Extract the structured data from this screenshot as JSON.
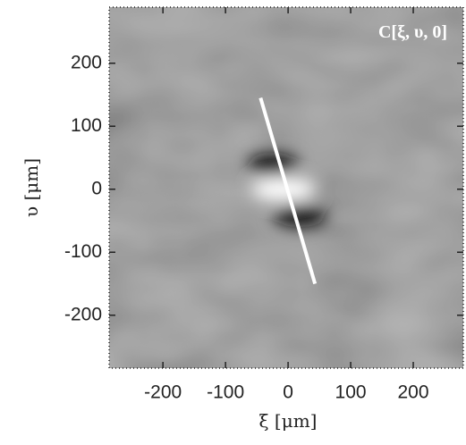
{
  "chart_data": {
    "type": "heatmap",
    "title": "C[ξ, υ, 0]",
    "x_label": "ξ [μm]",
    "y_label": "υ [μm]",
    "xlim": [
      -286,
      280
    ],
    "ylim": [
      -284,
      289
    ],
    "xticks": [
      -200,
      -100,
      0,
      100,
      200
    ],
    "yticks": [
      -200,
      -100,
      0,
      100,
      200
    ],
    "line": {
      "x": [
        -44,
        43
      ],
      "y": [
        145,
        -150
      ],
      "color": "#ffffff"
    }
  }
}
